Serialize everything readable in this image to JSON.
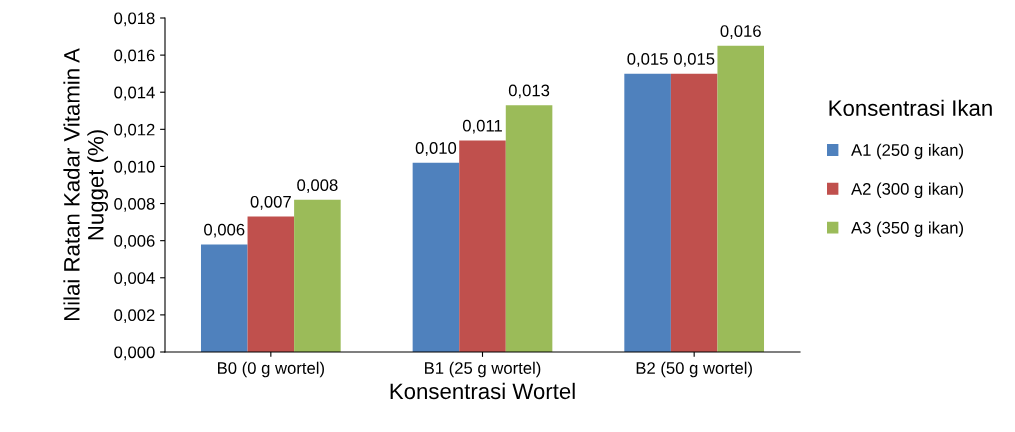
{
  "chart_data": {
    "type": "bar",
    "xlabel": "Konsentrasi Wortel",
    "ylabel": "Nilai Ratan Kadar Vitamin A\nNugget (%)",
    "legend_title": "Konsentrasi Ikan",
    "legend": "right",
    "grid": false,
    "categories": [
      "B0 (0 g wortel)",
      "B1 (25 g wortel)",
      "B2 (50 g wortel)"
    ],
    "series": [
      {
        "name": "A1 (250 g ikan)",
        "color": "#4f81bd",
        "values": [
          0.0058,
          0.0102,
          0.015
        ],
        "value_labels": [
          "0,006",
          "0,010",
          "0,015"
        ]
      },
      {
        "name": "A2 (300 g ikan)",
        "color": "#c0504d",
        "values": [
          0.0073,
          0.0114,
          0.015
        ],
        "value_labels": [
          "0,007",
          "0,011",
          "0,015"
        ]
      },
      {
        "name": "A3 (350 g ikan)",
        "color": "#9bbb59",
        "values": [
          0.0082,
          0.0133,
          0.0165
        ],
        "value_labels": [
          "0,008",
          "0,013",
          "0,016"
        ]
      }
    ],
    "ylim": [
      0,
      0.018
    ],
    "yticks": [
      {
        "value": 0,
        "label": "0,000"
      },
      {
        "value": 0.002,
        "label": "0,002"
      },
      {
        "value": 0.004,
        "label": "0,004"
      },
      {
        "value": 0.006,
        "label": "0,006"
      },
      {
        "value": 0.008,
        "label": "0,008"
      },
      {
        "value": 0.01,
        "label": "0,010"
      },
      {
        "value": 0.012,
        "label": "0,012"
      },
      {
        "value": 0.014,
        "label": "0,014"
      },
      {
        "value": 0.016,
        "label": "0,016"
      },
      {
        "value": 0.018,
        "label": "0,018"
      }
    ]
  }
}
